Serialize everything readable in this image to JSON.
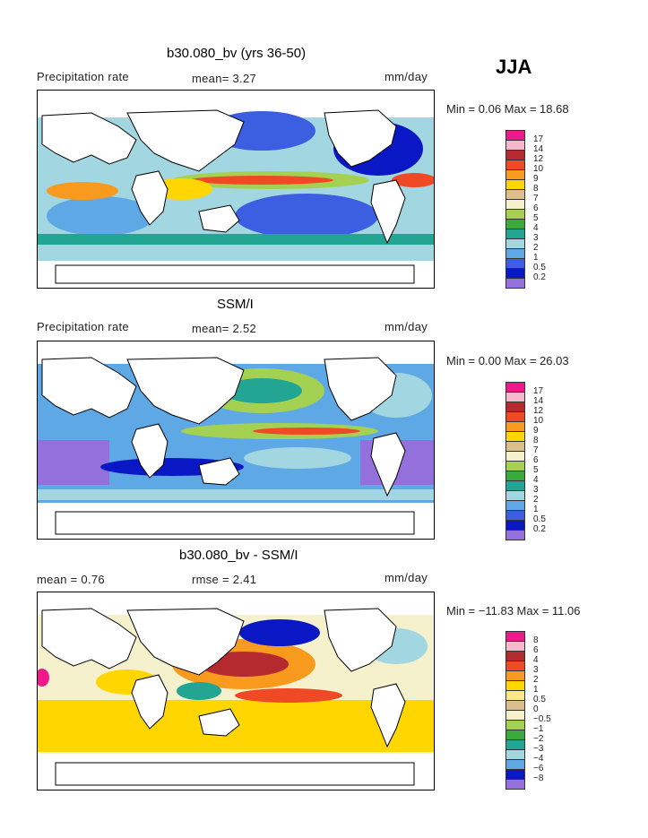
{
  "season": "JJA",
  "panels": [
    {
      "title": "b30.080_bv (yrs 36-50)",
      "left_header": "Precipitation rate",
      "mid_header": "mean=   3.27",
      "units": "mm/day",
      "minmax": "Min =   0.06 Max =  18.68",
      "legend": {
        "labels": [
          "17",
          "14",
          "12",
          "10",
          "9",
          "8",
          "7",
          "6",
          "5",
          "4",
          "3",
          "2",
          "1",
          "0.5",
          "0.2"
        ],
        "colors": [
          "#f0198c",
          "#f5b8cc",
          "#b52a2e",
          "#ef4a25",
          "#f79a1e",
          "#ffd600",
          "#dcbd8c",
          "#f5f1cc",
          "#a5d152",
          "#3aaa3e",
          "#22a592",
          "#a2d6e0",
          "#5ea8e6",
          "#3b5fe0",
          "#0a17c4",
          "#9370db"
        ]
      },
      "map_field": "model"
    },
    {
      "title": "SSM/I",
      "left_header": "Precipitation rate",
      "mid_header": "mean=   2.52",
      "units": "mm/day",
      "minmax": "Min =   0.00 Max =  26.03",
      "legend": {
        "labels": [
          "17",
          "14",
          "12",
          "10",
          "9",
          "8",
          "7",
          "6",
          "5",
          "4",
          "3",
          "2",
          "1",
          "0.5",
          "0.2"
        ],
        "colors": [
          "#f0198c",
          "#f5b8cc",
          "#b52a2e",
          "#ef4a25",
          "#f79a1e",
          "#ffd600",
          "#dcbd8c",
          "#f5f1cc",
          "#a5d152",
          "#3aaa3e",
          "#22a592",
          "#a2d6e0",
          "#5ea8e6",
          "#3b5fe0",
          "#0a17c4",
          "#9370db"
        ]
      },
      "map_field": "obs"
    },
    {
      "title": "b30.080_bv - SSM/I",
      "left_header": "mean =   0.76",
      "mid_header": "rmse =   2.41",
      "units": "mm/day",
      "minmax": "Min = −11.83 Max =  11.06",
      "legend": {
        "labels": [
          "8",
          "6",
          "4",
          "3",
          "2",
          "1",
          "0.5",
          "0",
          "−0.5",
          "−1",
          "−2",
          "−3",
          "−4",
          "−6",
          "−8"
        ],
        "colors": [
          "#f0198c",
          "#f5b8cc",
          "#b52a2e",
          "#ef4a25",
          "#f79a1e",
          "#ffd600",
          "#fbe785",
          "#dcbd8c",
          "#f5f1cc",
          "#a5d152",
          "#3aaa3e",
          "#22a592",
          "#a2d6e0",
          "#5ea8e6",
          "#0a17c4",
          "#9370db"
        ]
      },
      "map_field": "diff"
    }
  ],
  "chart_data": [
    {
      "type": "heatmap",
      "title": "b30.080_bv (yrs 36-50)",
      "subtitle": "Precipitation rate",
      "units": "mm/day",
      "mean": 3.27,
      "min": 0.06,
      "max": 18.68,
      "levels": [
        0.2,
        0.5,
        1,
        2,
        3,
        4,
        5,
        6,
        7,
        8,
        9,
        10,
        12,
        14,
        17
      ]
    },
    {
      "type": "heatmap",
      "title": "SSM/I",
      "subtitle": "Precipitation rate",
      "units": "mm/day",
      "mean": 2.52,
      "min": 0.0,
      "max": 26.03,
      "levels": [
        0.2,
        0.5,
        1,
        2,
        3,
        4,
        5,
        6,
        7,
        8,
        9,
        10,
        12,
        14,
        17
      ]
    },
    {
      "type": "heatmap",
      "title": "b30.080_bv - SSM/I",
      "units": "mm/day",
      "mean": 0.76,
      "rmse": 2.41,
      "min": -11.83,
      "max": 11.06,
      "levels": [
        -8,
        -6,
        -4,
        -3,
        -2,
        -1,
        -0.5,
        0,
        0.5,
        1,
        2,
        3,
        4,
        6,
        8
      ]
    }
  ]
}
